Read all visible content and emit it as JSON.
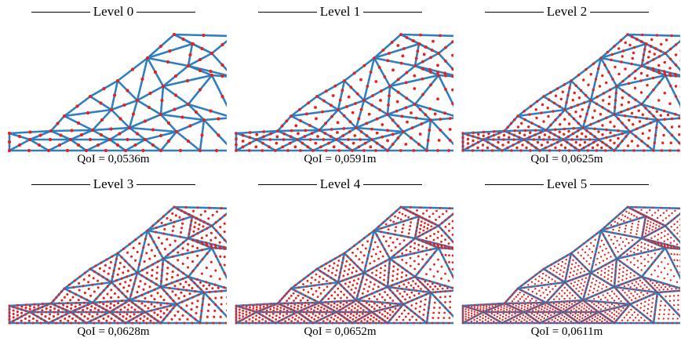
{
  "panels": [
    {
      "level": "Level 0",
      "qoi": "QoI = 0,0536m"
    },
    {
      "level": "Level 1",
      "qoi": "QoI = 0,0591m"
    },
    {
      "level": "Level 2",
      "qoi": "QoI = 0,0625m"
    },
    {
      "level": "Level 3",
      "qoi": "QoI = 0,0628m"
    },
    {
      "level": "Level 4",
      "qoi": "QoI = 0,0652m"
    },
    {
      "level": "Level 5",
      "qoi": "QoI = 0,0611m"
    }
  ],
  "colors": {
    "edge": "#2f7fc0",
    "node": "#e8201e"
  }
}
